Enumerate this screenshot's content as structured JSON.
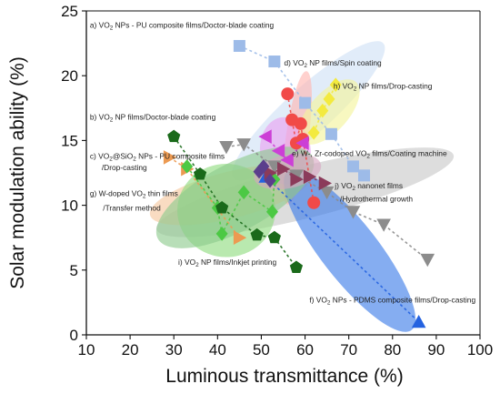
{
  "chart_data": {
    "type": "scatter",
    "xlabel": "Luminous transmittance (%)",
    "ylabel": "Solar modulation ability (%)",
    "xlim": [
      10,
      100
    ],
    "ylim": [
      0,
      25
    ],
    "xticks": [
      "10",
      "20",
      "30",
      "40",
      "50",
      "60",
      "70",
      "80",
      "90",
      "100"
    ],
    "yticks": [
      "0",
      "5",
      "10",
      "15",
      "20",
      "25"
    ],
    "grid": false,
    "series": [
      {
        "label": "a",
        "color": "#9dbbe8",
        "marker": "square",
        "ellipse": {
          "cx": 60.8,
          "cy": 17.3,
          "rx": 23,
          "ry": 1.8,
          "angle": -42,
          "color": "#cfe0f6"
        },
        "x": [
          45,
          53,
          60,
          66,
          71,
          73.5
        ],
        "y": [
          22.3,
          21.1,
          17.9,
          15.5,
          13.0,
          12.3
        ]
      },
      {
        "label": "b",
        "color": "#8c8c8c",
        "marker": "triangle-down",
        "ellipse": {
          "cx": 60,
          "cy": 11.0,
          "rx": 35,
          "ry": 2.0,
          "angle": -14,
          "color": "#c8c8c8"
        },
        "x": [
          42,
          46,
          53,
          58,
          65,
          71,
          78,
          88
        ],
        "y": [
          14.5,
          14.7,
          13.0,
          12.3,
          11.0,
          9.5,
          8.5,
          5.8
        ]
      },
      {
        "label": "c",
        "color": "#ec9a52",
        "marker": "triangle-right",
        "ellipse": {
          "cx": 43,
          "cy": 10.8,
          "rx": 19,
          "ry": 1.8,
          "angle": -14,
          "color": "#f6c79c"
        },
        "x": [
          29,
          33,
          45
        ],
        "y": [
          13.7,
          12.8,
          7.5
        ]
      },
      {
        "label": "d",
        "color": "#f14a48",
        "marker": "circle",
        "ellipse": {
          "cx": 58.2,
          "cy": 15.2,
          "rx": 2.6,
          "ry": 5.2,
          "angle": 8,
          "color": "#ffb4b0"
        },
        "x": [
          56,
          57,
          58,
          59,
          59.5,
          62
        ],
        "y": [
          18.6,
          16.6,
          14.8,
          16.3,
          15.1,
          10.2
        ]
      },
      {
        "label": "e",
        "color": "#cc3fd6",
        "marker": "triangle-left",
        "ellipse": {
          "cx": 55.5,
          "cy": 14.2,
          "rx": 5.8,
          "ry": 2.6,
          "angle": -5,
          "color": "#e89ff0"
        },
        "x": [
          51,
          54,
          56,
          59.5
        ],
        "y": [
          15.3,
          14.2,
          13.5,
          14.8
        ]
      },
      {
        "label": "f",
        "color": "#2462e0",
        "marker": "triangle-up",
        "ellipse": {
          "cx": 70.2,
          "cy": 6.5,
          "rx": 23,
          "ry": 2.2,
          "angle": 52,
          "color": "#3a7ae8"
        },
        "x": [
          51,
          86
        ],
        "y": [
          12.2,
          1.0
        ]
      },
      {
        "label": "g",
        "color": "#4cc944",
        "marker": "diamond",
        "ellipse": {
          "cx": 42,
          "cy": 9.6,
          "rx": 11.2,
          "ry": 3.6,
          "angle": 0,
          "color": "#8edc7e"
        },
        "x": [
          33,
          40,
          41,
          46,
          52.5,
          53
        ],
        "y": [
          13.0,
          9.8,
          7.8,
          11.0,
          9.5,
          12.0
        ]
      },
      {
        "label": "h",
        "color": "#f3ea3f",
        "marker": "diamond",
        "ellipse": {
          "cx": 65.5,
          "cy": 17.2,
          "rx": 9.2,
          "ry": 1.5,
          "angle": -48,
          "color": "#f3f39a"
        },
        "x": [
          62,
          64,
          65.5,
          67
        ],
        "y": [
          15.6,
          17.3,
          18.2,
          19.3
        ]
      },
      {
        "label": "i",
        "color": "#1a6a1a",
        "marker": "pentagon",
        "ellipse": {
          "cx": 44,
          "cy": 10.6,
          "rx": 20,
          "ry": 2.6,
          "angle": -28,
          "color": "#8cc98c"
        },
        "x": [
          30,
          36,
          41,
          49,
          53,
          58
        ],
        "y": [
          15.3,
          12.4,
          9.8,
          7.7,
          7.5,
          5.2
        ]
      },
      {
        "label": "j",
        "color": "#8b3b5a",
        "marker": "triangle-right",
        "ellipse": {
          "cx": 56,
          "cy": 12.6,
          "rx": 7.8,
          "ry": 1.3,
          "angle": -12,
          "color": "#d9a7c1"
        },
        "x": [
          52,
          55,
          58,
          61,
          64.5
        ],
        "y": [
          12.5,
          12.8,
          12.0,
          12.2,
          11.7
        ]
      },
      {
        "label": "j2",
        "color": "#5b3f8c",
        "marker": "diamond",
        "ellipse": null,
        "x": [
          49.5,
          50.5,
          52
        ],
        "y": [
          12.6,
          13.0,
          11.9
        ]
      }
    ],
    "annotations": [
      {
        "text": "a) VO",
        "sub": "2",
        "rest": " NPs - PU composite films/Doctor-blade coating",
        "x": 10.8,
        "y": 23.7
      },
      {
        "text": "d) VO",
        "sub": "2",
        "rest": " NP films/Spin coating",
        "x": 55.2,
        "y": 20.8
      },
      {
        "text": "h) VO",
        "sub": "2",
        "rest": " NP films/Drop-casting",
        "x": 66.5,
        "y": 19.0
      },
      {
        "text": "b) VO",
        "sub": "2",
        "rest": " NP films/Doctor-blade coating",
        "x": 10.8,
        "y": 16.6
      },
      {
        "text": "e) W-, Zr-codoped VO",
        "sub": "2",
        "rest": " films/Coating machine",
        "x": 57.0,
        "y": 13.8
      },
      {
        "text": "c) VO",
        "sub": "2",
        "rest": "@SiO",
        "sub2": "2",
        "rest2": " NPs - PU composite films",
        "x": 10.8,
        "y": 13.6
      },
      {
        "text": "/Drop-casting",
        "x": 13.5,
        "y": 12.7
      },
      {
        "text": "j) VO",
        "sub": "2",
        "rest": " nanonet films",
        "x": 66.8,
        "y": 11.3
      },
      {
        "text": "/Hydrothermal growth",
        "x": 68.0,
        "y": 10.3
      },
      {
        "text": "g) W-doped  VO",
        "sub": "2",
        "rest": " thin films",
        "x": 10.8,
        "y": 10.7
      },
      {
        "text": "/Transfer method",
        "x": 13.8,
        "y": 9.6
      },
      {
        "text": "i) VO",
        "sub": "2",
        "rest": " NP films/Inkjet printing",
        "x": 31.0,
        "y": 5.4
      },
      {
        "text": "f) VO",
        "sub": "2",
        "rest": " NPs - PDMS composite films/Drop-casting",
        "x": 61.0,
        "y": 2.5
      }
    ]
  }
}
